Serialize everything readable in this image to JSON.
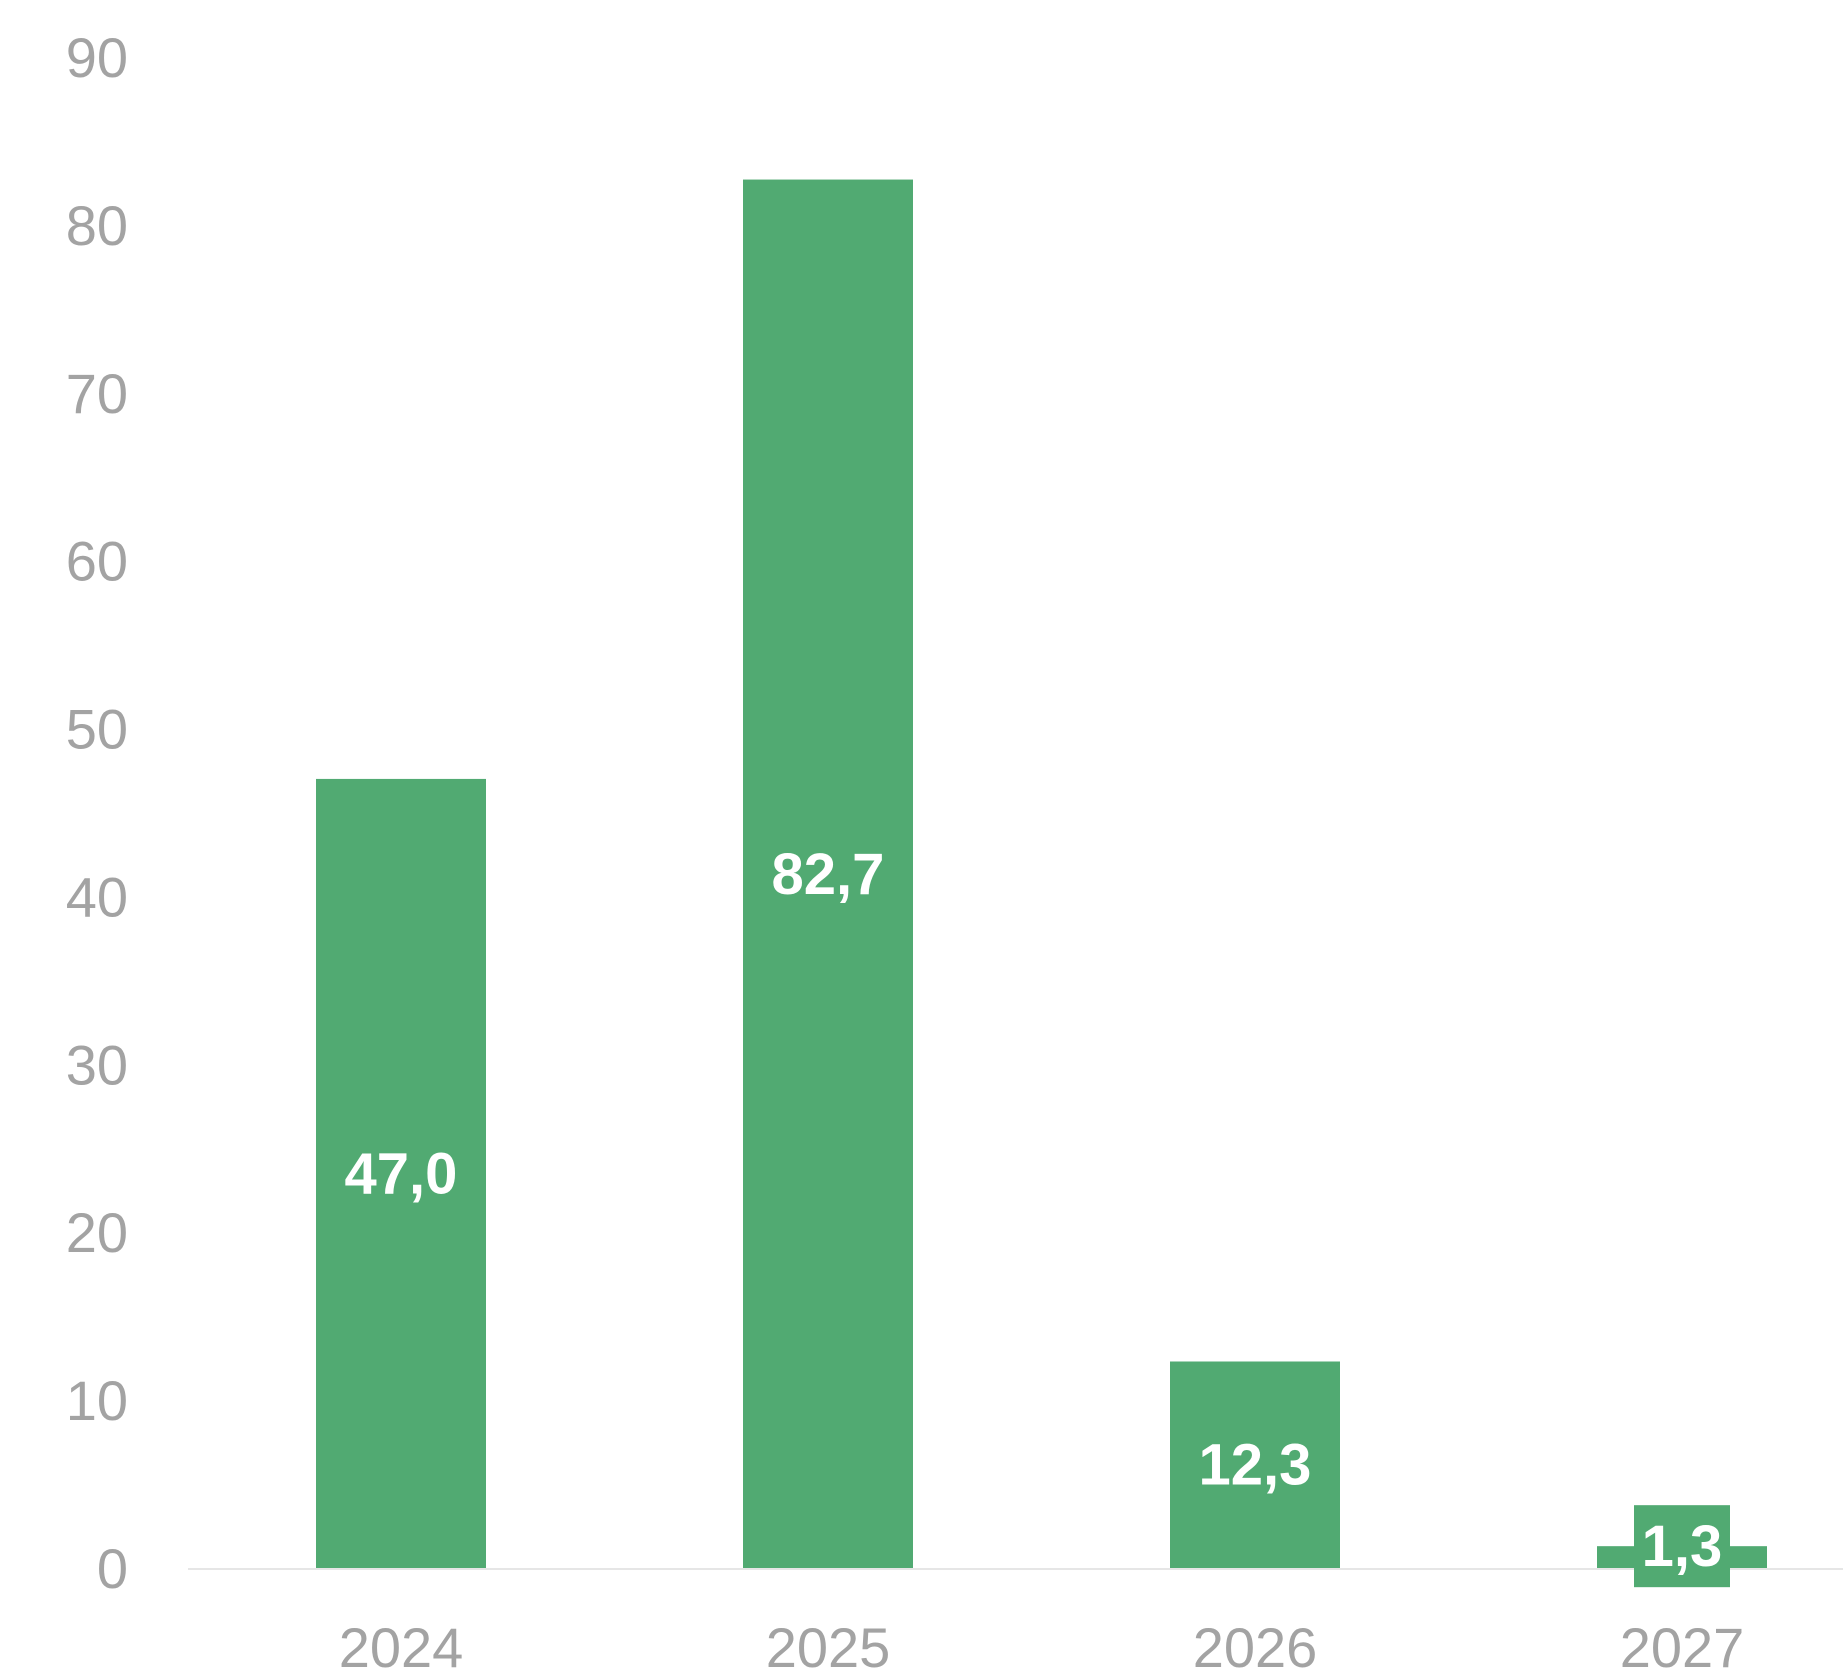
{
  "chart_data": {
    "type": "bar",
    "categories": [
      "2024",
      "2025",
      "2026",
      "2027"
    ],
    "values": [
      47.0,
      82.7,
      12.3,
      1.3
    ],
    "value_labels": [
      "47,0",
      "82,7",
      "12,3",
      "1,3"
    ],
    "ylim": [
      0,
      90
    ],
    "yticks": [
      0,
      10,
      20,
      30,
      40,
      50,
      60,
      70,
      80,
      90
    ],
    "title": "",
    "xlabel": "",
    "ylabel": "",
    "grid": false,
    "legend": "none",
    "colors": {
      "bar": "#51aa72",
      "axis": "#e6e6e6",
      "tick_text": "#a3a3a3",
      "label_text": "#ffffff"
    }
  }
}
